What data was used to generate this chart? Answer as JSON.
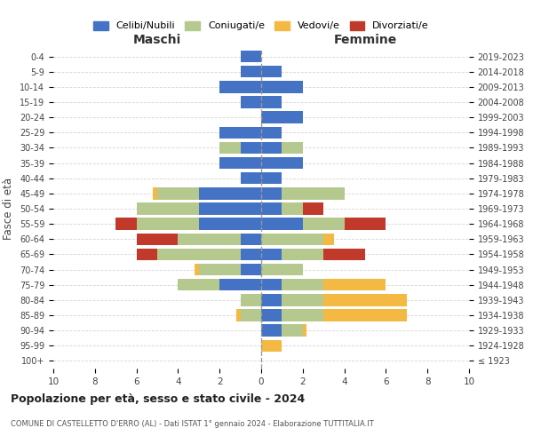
{
  "age_groups": [
    "100+",
    "95-99",
    "90-94",
    "85-89",
    "80-84",
    "75-79",
    "70-74",
    "65-69",
    "60-64",
    "55-59",
    "50-54",
    "45-49",
    "40-44",
    "35-39",
    "30-34",
    "25-29",
    "20-24",
    "15-19",
    "10-14",
    "5-9",
    "0-4"
  ],
  "birth_years": [
    "≤ 1923",
    "1924-1928",
    "1929-1933",
    "1934-1938",
    "1939-1943",
    "1944-1948",
    "1949-1953",
    "1954-1958",
    "1959-1963",
    "1964-1968",
    "1969-1973",
    "1974-1978",
    "1979-1983",
    "1984-1988",
    "1989-1993",
    "1994-1998",
    "1999-2003",
    "2004-2008",
    "2009-2013",
    "2014-2018",
    "2019-2023"
  ],
  "colors": {
    "celibi": "#4472c4",
    "coniugati": "#b5c98e",
    "vedovi": "#f4b942",
    "divorziati": "#c0392b"
  },
  "males": {
    "celibi": [
      0,
      0,
      0,
      0,
      0,
      2,
      1,
      1,
      1,
      3,
      3,
      3,
      1,
      2,
      1,
      2,
      0,
      1,
      2,
      1,
      1
    ],
    "coniugati": [
      0,
      0,
      0,
      1,
      1,
      2,
      2,
      4,
      3,
      3,
      3,
      2,
      0,
      0,
      1,
      0,
      0,
      0,
      0,
      0,
      0
    ],
    "vedovi": [
      0,
      0,
      0,
      0.2,
      0,
      0,
      0.2,
      0,
      0,
      0,
      0,
      0.2,
      0,
      0,
      0,
      0,
      0,
      0,
      0,
      0,
      0
    ],
    "divorziati": [
      0,
      0,
      0,
      0,
      0,
      0,
      0,
      1,
      2,
      1,
      0,
      0,
      0,
      0,
      0,
      0,
      0,
      0,
      0,
      0,
      0
    ]
  },
  "females": {
    "celibi": [
      0,
      0,
      1,
      1,
      1,
      1,
      0,
      1,
      0,
      2,
      1,
      1,
      1,
      2,
      1,
      1,
      2,
      1,
      2,
      1,
      0
    ],
    "coniugati": [
      0,
      0,
      1,
      2,
      2,
      2,
      2,
      2,
      3,
      2,
      1,
      3,
      0,
      0,
      1,
      0,
      0,
      0,
      0,
      0,
      0
    ],
    "vedovi": [
      0,
      1,
      0.2,
      4,
      4,
      3,
      0,
      0,
      0.5,
      0,
      0,
      0,
      0,
      0,
      0,
      0,
      0,
      0,
      0,
      0,
      0
    ],
    "divorziati": [
      0,
      0,
      0,
      0,
      0,
      0,
      0,
      2,
      0,
      2,
      1,
      0,
      0,
      0,
      0,
      0,
      0,
      0,
      0,
      0,
      0
    ]
  },
  "title": "Popolazione per età, sesso e stato civile - 2024",
  "subtitle": "COMUNE DI CASTELLETTO D'ERRO (AL) - Dati ISTAT 1° gennaio 2024 - Elaborazione TUTTITALIA.IT",
  "xlabel_left": "Maschi",
  "xlabel_right": "Femmine",
  "ylabel_left": "Fasce di età",
  "xlim": 10,
  "legend_labels": [
    "Celibi/Nubili",
    "Coniugati/e",
    "Vedovi/e",
    "Divorziati/e"
  ],
  "background_color": "#ffffff",
  "grid_color": "#cccccc"
}
